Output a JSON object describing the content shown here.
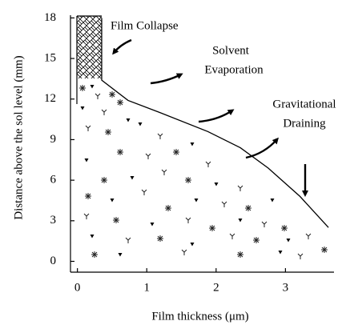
{
  "chart_data": {
    "type": "line",
    "xlabel": "Film thickness (μm)",
    "ylabel": "Distance above the sol level (mm)",
    "x": [
      0.35,
      0.35,
      0.73,
      1.19,
      1.88,
      2.35,
      2.75,
      3.21,
      3.62
    ],
    "series": [
      {
        "color": "#000000",
        "values": [
          18,
          13.4,
          11.9,
          11.0,
          9.6,
          8.4,
          6.9,
          4.8,
          2.5
        ]
      }
    ],
    "xlim": [
      -0.1,
      3.7
    ],
    "ylim": [
      -0.8,
      18.2
    ],
    "xticks": [
      0,
      1,
      2,
      3
    ],
    "yticks": [
      0,
      3,
      6,
      9,
      12,
      15,
      18
    ],
    "annotations": [
      "Film Collapse",
      "Solvent",
      "Evaporation",
      "Gravitational",
      "Draining"
    ]
  }
}
